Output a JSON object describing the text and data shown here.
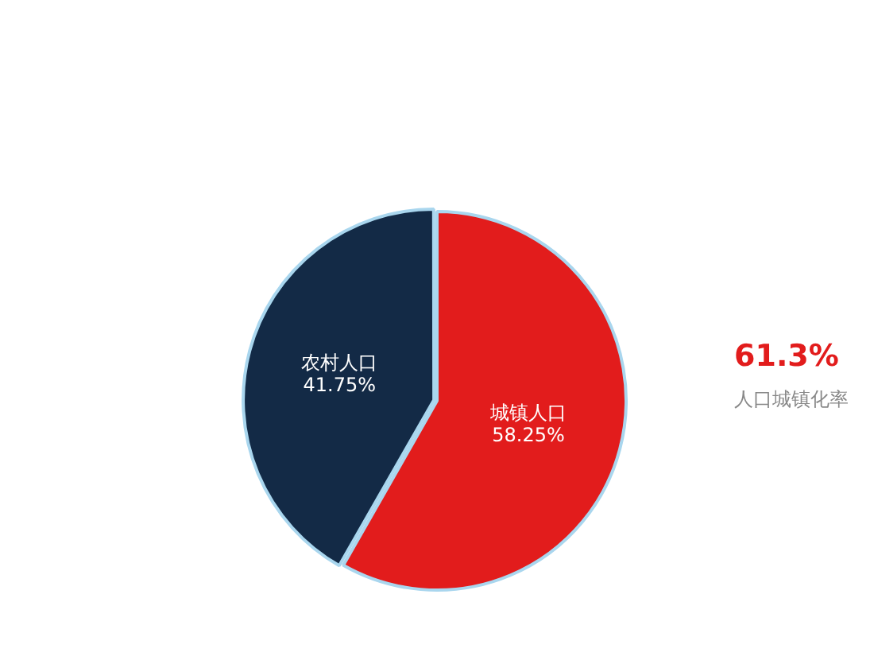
{
  "chart_data": {
    "type": "pie",
    "categories": [
      "城镇人口",
      "农村人口"
    ],
    "values": [
      58.25,
      41.75
    ],
    "colors": [
      "#e21c1c",
      "#132a46"
    ],
    "value_labels": [
      "58.25%",
      "41.75%"
    ],
    "legend": false,
    "annotations": [
      "61.3%",
      "人口城镇化率"
    ]
  }
}
